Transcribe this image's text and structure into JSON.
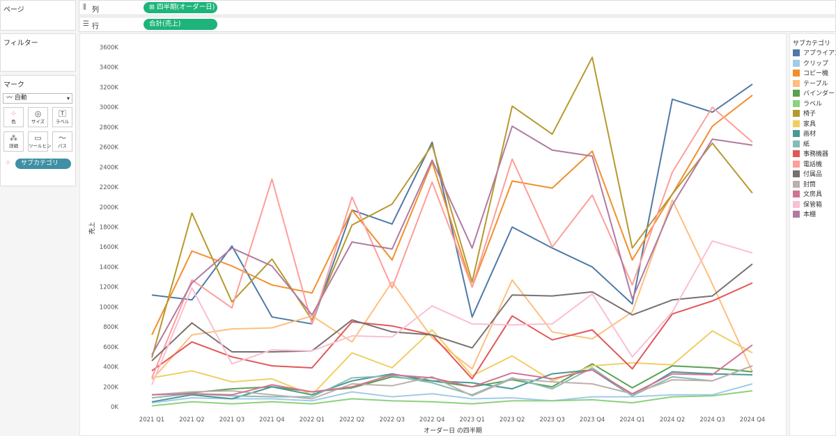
{
  "shelves": {
    "pages_label": "ページ",
    "columns_label": "列",
    "columns_pill": "⊞ 四半期(オーダー日)",
    "rows_label": "行",
    "rows_pill": "合計(売上)"
  },
  "filters_label": "フィルター",
  "marks": {
    "title": "マーク",
    "type": "自動",
    "buttons": [
      "色",
      "サイズ",
      "ラベル",
      "詳細",
      "ツールヒント",
      "パス"
    ],
    "color_field": "サブカテゴリ"
  },
  "legend": {
    "title": "サブカテゴリ"
  },
  "chart_data": {
    "type": "line",
    "xlabel": "オーダー日 の四半期",
    "ylabel": "売上",
    "ylim": [
      0,
      3700000
    ],
    "yticks": [
      0,
      200000,
      400000,
      600000,
      800000,
      1000000,
      1200000,
      1400000,
      1600000,
      1800000,
      2000000,
      2200000,
      2400000,
      2600000,
      2800000,
      3000000,
      3200000,
      3400000,
      3600000
    ],
    "ytick_labels": [
      "0K",
      "200K",
      "400K",
      "600K",
      "800K",
      "1000K",
      "1200K",
      "1400K",
      "1600K",
      "1800K",
      "2000K",
      "2200K",
      "2400K",
      "2600K",
      "2800K",
      "3000K",
      "3200K",
      "3400K",
      "3600K"
    ],
    "categories": [
      "2021 Q1",
      "2021 Q2",
      "2021 Q3",
      "2021 Q4",
      "2022 Q1",
      "2022 Q2",
      "2022 Q3",
      "2022 Q4",
      "2023 Q1",
      "2023 Q2",
      "2023 Q3",
      "2023 Q4",
      "2024 Q1",
      "2024 Q2",
      "2024 Q3",
      "2024 Q4"
    ],
    "grid": false,
    "legend_position": "right",
    "series": [
      {
        "name": "アプライアンス",
        "color": "#4e79a7",
        "values": [
          1120000,
          1070000,
          1610000,
          900000,
          830000,
          1970000,
          1830000,
          2650000,
          900000,
          1800000,
          1590000,
          1400000,
          1030000,
          3080000,
          2950000,
          3230000
        ]
      },
      {
        "name": "クリップ",
        "color": "#a0cbe8",
        "values": [
          40000,
          90000,
          80000,
          80000,
          60000,
          150000,
          100000,
          130000,
          80000,
          90000,
          60000,
          100000,
          100000,
          120000,
          120000,
          230000
        ]
      },
      {
        "name": "コピー機",
        "color": "#f28e2b",
        "values": [
          720000,
          1560000,
          1410000,
          1220000,
          1140000,
          1970000,
          1470000,
          2450000,
          1200000,
          2260000,
          2190000,
          2560000,
          1470000,
          2130000,
          2810000,
          3120000
        ]
      },
      {
        "name": "テーブル",
        "color": "#ffbe7d",
        "values": [
          270000,
          720000,
          780000,
          790000,
          910000,
          650000,
          1250000,
          690000,
          380000,
          1270000,
          750000,
          680000,
          950000,
          2070000,
          1230000,
          350000
        ]
      },
      {
        "name": "バインダー",
        "color": "#59a14f",
        "values": [
          120000,
          140000,
          180000,
          200000,
          150000,
          190000,
          300000,
          260000,
          200000,
          270000,
          200000,
          430000,
          190000,
          410000,
          390000,
          350000
        ]
      },
      {
        "name": "ラベル",
        "color": "#8cd17d",
        "values": [
          10000,
          50000,
          30000,
          50000,
          30000,
          80000,
          60000,
          50000,
          30000,
          60000,
          60000,
          70000,
          40000,
          100000,
          110000,
          160000
        ]
      },
      {
        "name": "椅子",
        "color": "#b6992d",
        "values": [
          490000,
          1940000,
          1050000,
          1480000,
          870000,
          1820000,
          2030000,
          2620000,
          1250000,
          3010000,
          2730000,
          3500000,
          1590000,
          2130000,
          2640000,
          2140000
        ]
      },
      {
        "name": "家具",
        "color": "#f1ce63",
        "values": [
          290000,
          360000,
          250000,
          280000,
          120000,
          540000,
          390000,
          770000,
          310000,
          510000,
          260000,
          410000,
          440000,
          420000,
          760000,
          540000
        ]
      },
      {
        "name": "画材",
        "color": "#499894",
        "values": [
          50000,
          120000,
          80000,
          200000,
          120000,
          260000,
          330000,
          260000,
          240000,
          180000,
          330000,
          370000,
          110000,
          350000,
          330000,
          320000
        ]
      },
      {
        "name": "紙",
        "color": "#86bcb6",
        "values": [
          90000,
          130000,
          110000,
          100000,
          100000,
          290000,
          310000,
          240000,
          120000,
          290000,
          180000,
          390000,
          110000,
          300000,
          260000,
          410000
        ]
      },
      {
        "name": "事務機器",
        "color": "#e15759",
        "values": [
          360000,
          650000,
          500000,
          410000,
          390000,
          850000,
          810000,
          720000,
          280000,
          910000,
          670000,
          770000,
          380000,
          930000,
          1060000,
          1240000
        ]
      },
      {
        "name": "電話機",
        "color": "#ff9d9a",
        "values": [
          290000,
          1270000,
          990000,
          2280000,
          830000,
          2100000,
          1190000,
          2250000,
          1200000,
          2480000,
          1600000,
          2120000,
          1220000,
          2350000,
          3000000,
          2650000
        ]
      },
      {
        "name": "付属品",
        "color": "#79706e",
        "values": [
          460000,
          840000,
          550000,
          550000,
          560000,
          870000,
          750000,
          720000,
          590000,
          1120000,
          1110000,
          1150000,
          920000,
          1070000,
          1110000,
          1430000
        ]
      },
      {
        "name": "封筒",
        "color": "#bab0ac",
        "values": [
          120000,
          150000,
          160000,
          120000,
          80000,
          230000,
          210000,
          300000,
          110000,
          280000,
          250000,
          230000,
          130000,
          270000,
          260000,
          410000
        ]
      },
      {
        "name": "文房具",
        "color": "#d37295",
        "values": [
          120000,
          130000,
          120000,
          220000,
          150000,
          200000,
          320000,
          290000,
          200000,
          340000,
          280000,
          370000,
          130000,
          330000,
          320000,
          620000
        ]
      },
      {
        "name": "保管箱",
        "color": "#fabfd2",
        "values": [
          220000,
          1190000,
          430000,
          570000,
          560000,
          710000,
          700000,
          1010000,
          830000,
          820000,
          830000,
          1130000,
          500000,
          950000,
          1660000,
          1540000
        ]
      },
      {
        "name": "本棚",
        "color": "#b07aa1",
        "values": [
          520000,
          1240000,
          1590000,
          1410000,
          920000,
          1650000,
          1580000,
          2470000,
          1590000,
          2810000,
          2570000,
          2510000,
          1080000,
          2020000,
          2680000,
          2620000
        ]
      }
    ]
  }
}
